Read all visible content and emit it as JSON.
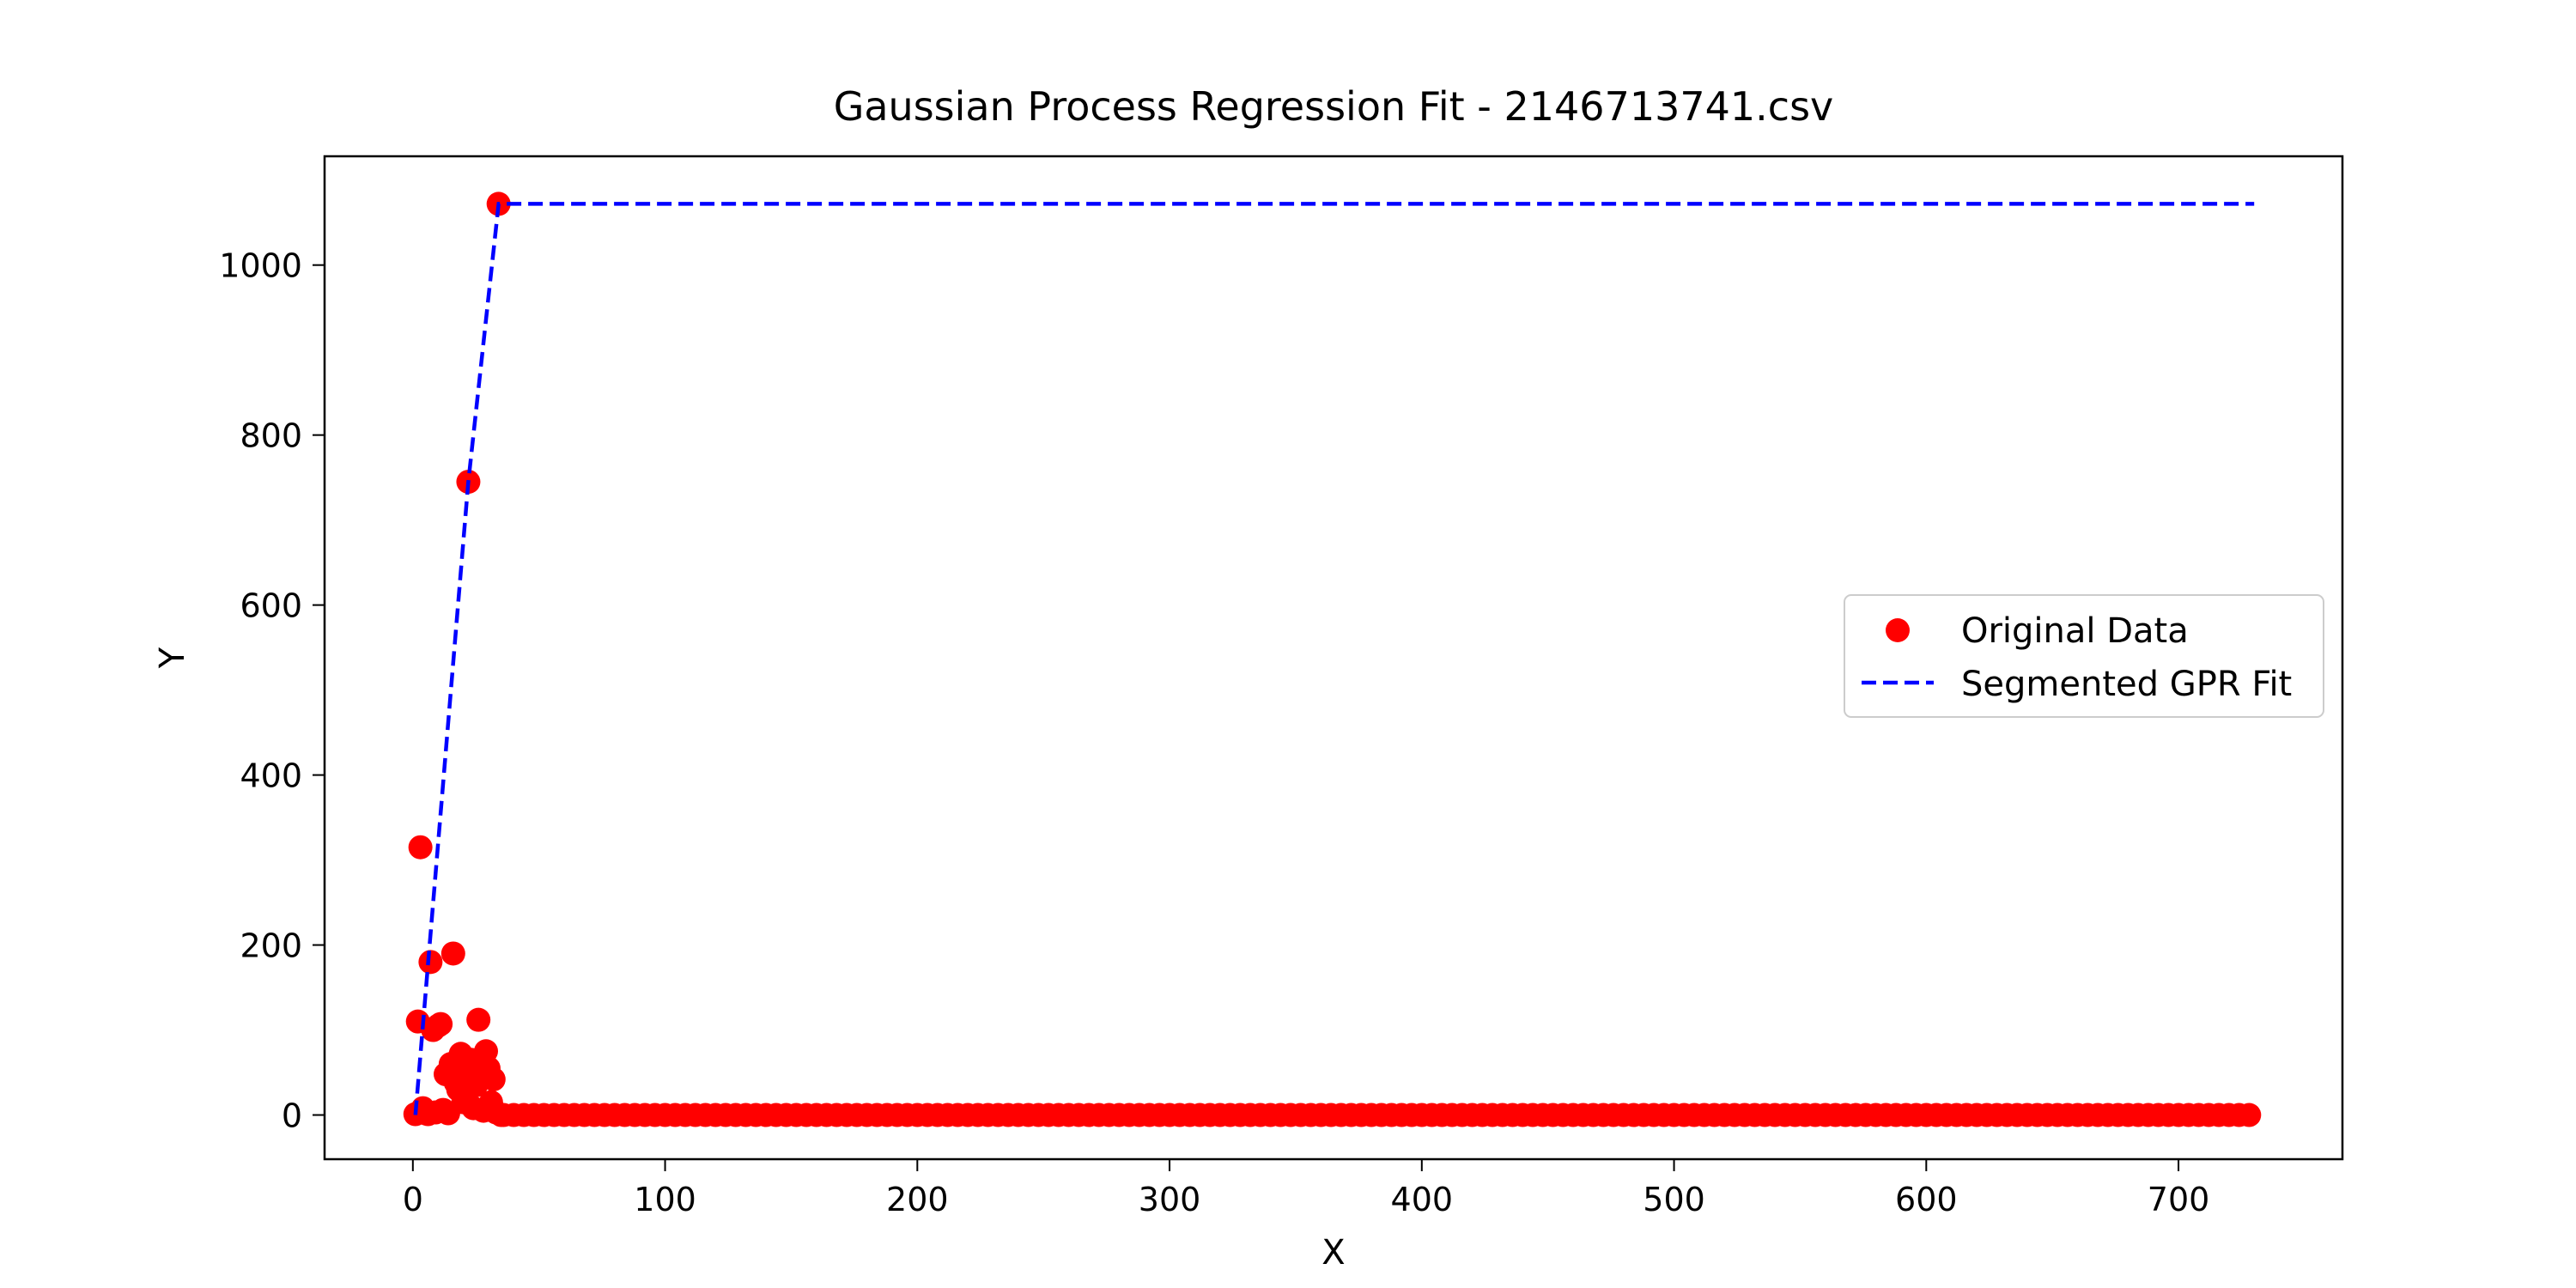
{
  "chart_data": {
    "type": "scatter",
    "title": "Gaussian Process Regression Fit - 2146713741.csv",
    "xlabel": "X",
    "ylabel": "Y",
    "xlim": [
      -35,
      765
    ],
    "ylim": [
      -52,
      1128
    ],
    "xticks": [
      0,
      100,
      200,
      300,
      400,
      500,
      600,
      700
    ],
    "yticks": [
      0,
      200,
      400,
      600,
      800,
      1000
    ],
    "grid": false,
    "legend_position": "center-right",
    "series": [
      {
        "name": "Original Data",
        "type": "scatter",
        "color": "#ff0000",
        "points": [
          [
            1,
            1
          ],
          [
            2,
            110
          ],
          [
            3,
            315
          ],
          [
            4,
            8
          ],
          [
            5,
            2
          ],
          [
            6,
            1
          ],
          [
            7,
            180
          ],
          [
            8,
            100
          ],
          [
            9,
            3
          ],
          [
            10,
            105
          ],
          [
            11,
            107
          ],
          [
            12,
            6
          ],
          [
            13,
            48
          ],
          [
            14,
            2
          ],
          [
            15,
            60
          ],
          [
            16,
            190
          ],
          [
            17,
            38
          ],
          [
            18,
            30
          ],
          [
            19,
            72
          ],
          [
            20,
            15
          ],
          [
            21,
            50
          ],
          [
            22,
            745
          ],
          [
            23,
            65
          ],
          [
            24,
            8
          ],
          [
            25,
            35
          ],
          [
            26,
            112
          ],
          [
            27,
            45
          ],
          [
            28,
            5
          ],
          [
            29,
            75
          ],
          [
            30,
            55
          ],
          [
            31,
            15
          ],
          [
            32,
            42
          ],
          [
            33,
            3
          ],
          [
            34,
            1072
          ],
          [
            35,
            0
          ]
        ],
        "flat_run": {
          "x_start": 36,
          "x_end": 730,
          "step": 4,
          "y": 0
        }
      },
      {
        "name": "Segmented GPR Fit",
        "type": "line",
        "style": "dashed",
        "color": "#0000ff",
        "x": [
          1,
          22,
          34,
          730
        ],
        "y": [
          0,
          745,
          1072,
          1072
        ]
      }
    ]
  }
}
